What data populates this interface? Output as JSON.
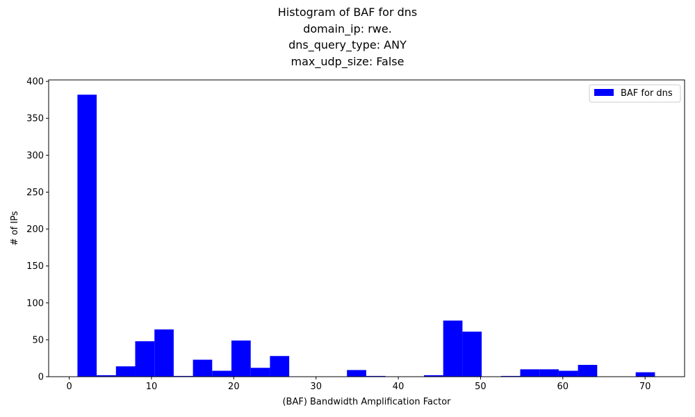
{
  "chart_data": {
    "type": "bar",
    "title_lines": [
      "Histogram of BAF for dns",
      "domain_ip: rwe.",
      "dns_query_type: ANY",
      "max_udp_size: False"
    ],
    "xlabel": "(BAF) Bandwidth Amplification Factor",
    "ylabel": "# of IPs",
    "xlim": [
      -2.5,
      74.8
    ],
    "ylim": [
      0,
      402
    ],
    "xticks": [
      0,
      10,
      20,
      30,
      40,
      50,
      60,
      70
    ],
    "yticks": [
      0,
      50,
      100,
      150,
      200,
      250,
      300,
      350,
      400
    ],
    "grid": false,
    "legend": {
      "placement": "top-right",
      "entries": [
        "BAF for dns"
      ]
    },
    "bar_color": "#0000ff",
    "bin_width": 2.34,
    "bin_starts": [
      1.0,
      3.34,
      5.68,
      8.02,
      10.36,
      12.7,
      15.04,
      17.38,
      19.72,
      22.06,
      24.4,
      26.74,
      29.08,
      31.42,
      33.76,
      36.1,
      38.44,
      40.78,
      43.12,
      45.46,
      47.8,
      50.14,
      52.48,
      54.82,
      57.16,
      59.5,
      61.84,
      64.18,
      66.52,
      68.86
    ],
    "values": [
      382,
      2,
      14,
      48,
      64,
      1,
      23,
      8,
      49,
      12,
      28,
      0,
      0,
      0,
      9,
      1,
      0,
      0,
      2,
      76,
      61,
      0,
      1,
      10,
      10,
      8,
      16,
      0,
      0,
      6
    ]
  }
}
